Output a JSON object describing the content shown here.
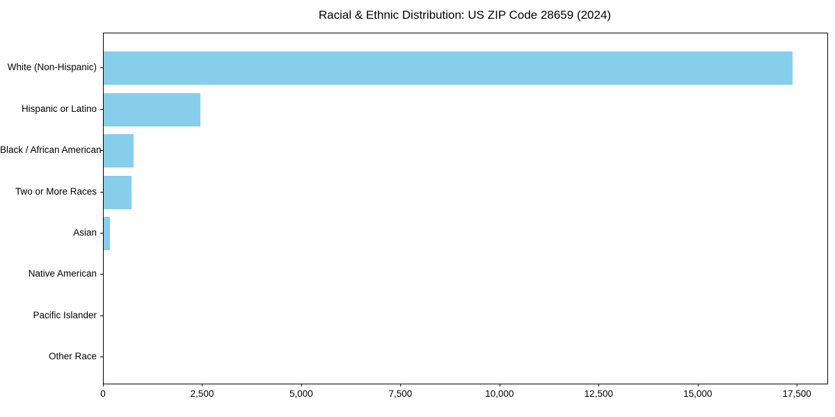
{
  "title": "Racial & Ethnic Distribution: US ZIP Code 28659 (2024)",
  "colors": {
    "bar": "#87CEEB",
    "axis": "#000000",
    "background": "#FFFFFF",
    "text": "#000000"
  },
  "chart_data": {
    "type": "bar",
    "orientation": "horizontal",
    "title": "Racial & Ethnic Distribution: US ZIP Code 28659 (2024)",
    "categories": [
      "White (Non-Hispanic)",
      "Hispanic or Latino",
      "Black / African American",
      "Two or More Races",
      "Asian",
      "Native American",
      "Pacific Islander",
      "Other Race"
    ],
    "values": [
      17380,
      2440,
      760,
      700,
      160,
      0,
      0,
      0
    ],
    "xlabel": "",
    "ylabel": "",
    "xlim": [
      0,
      18250
    ],
    "xticks": [
      0,
      2500,
      5000,
      7500,
      10000,
      12500,
      15000,
      17500
    ],
    "xtick_labels": [
      "0",
      "2,500",
      "5,000",
      "7,500",
      "10,000",
      "12,500",
      "15,000",
      "17,500"
    ],
    "grid": false,
    "legend": null,
    "bar_color": "#87CEEB",
    "frame": true
  }
}
